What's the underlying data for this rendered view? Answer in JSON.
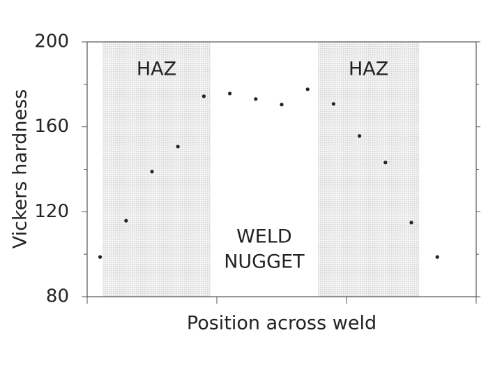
{
  "chart_data": {
    "type": "scatter",
    "xlabel": "Position across weld",
    "ylabel": "Vickers hardness",
    "x": [
      0.5,
      1.5,
      2.5,
      3.5,
      4.5,
      5.5,
      6.5,
      7.5,
      8.5,
      9.5,
      10.5,
      11.5,
      12.5,
      13.5
    ],
    "values": [
      98.7,
      115.8,
      138.9,
      150.7,
      174.4,
      175.7,
      173.1,
      170.5,
      177.7,
      170.8,
      155.7,
      143.2,
      114.9,
      98.7
    ],
    "color": "#222222",
    "xlim": [
      0,
      15
    ],
    "xticks": [
      0,
      5,
      10,
      15
    ],
    "ylim": [
      80,
      200
    ],
    "yticks": [
      80,
      120,
      160,
      200
    ],
    "yminorticks": [
      100,
      140,
      180
    ],
    "regions": [
      {
        "label": "HAZ",
        "x": [
          0.6,
          4.75
        ],
        "color": "#e6e6e6"
      },
      {
        "label": "HAZ",
        "x": [
          8.9,
          12.8
        ],
        "color": "#e6e6e6"
      }
    ],
    "annotation": [
      "WELD",
      "NUGGET"
    ]
  }
}
